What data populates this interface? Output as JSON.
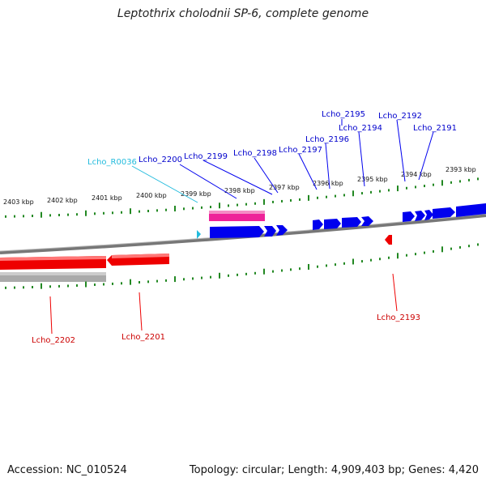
{
  "title": "Leptothrix cholodnii SP-6, complete genome",
  "footer": {
    "accession": "Accession: NC_010524",
    "summary": "Topology: circular; Length: 4,909,403 bp; Genes: 4,420"
  },
  "colors": {
    "forward_gene": "#0000ee",
    "reverse_gene": "#ee0000",
    "rna_gene": "#22bbdd",
    "pink_feature": "#ee2299",
    "tick": "#228822",
    "backbone": "#888888"
  },
  "scale_kbp_labels": [
    "2403 kbp",
    "2402 kbp",
    "2401 kbp",
    "2400 kbp",
    "2399 kbp",
    "2398 kbp",
    "2397 kbp",
    "2396 kbp",
    "2395 kbp",
    "2394 kbp",
    "2393 kbp"
  ],
  "forward_genes": [
    "Lcho_R0036",
    "Lcho_2200",
    "Lcho_2199",
    "Lcho_2198",
    "Lcho_2197",
    "Lcho_2196",
    "Lcho_2195",
    "Lcho_2194",
    "Lcho_2192",
    "Lcho_2191"
  ],
  "reverse_genes": [
    "Lcho_2202",
    "Lcho_2201",
    "Lcho_2193"
  ]
}
